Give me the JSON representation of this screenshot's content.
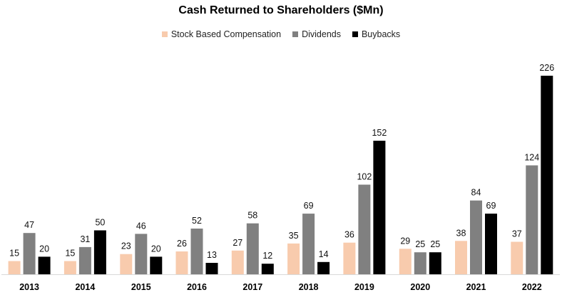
{
  "title": "Cash Returned to Shareholders ($Mn)",
  "legend": [
    {
      "name": "Stock Based Compensation",
      "color": "#f8cbad"
    },
    {
      "name": "Dividends",
      "color": "#808080"
    },
    {
      "name": "Buybacks",
      "color": "#000000"
    }
  ],
  "chart_data": {
    "type": "bar",
    "title": "Cash Returned to Shareholders ($Mn)",
    "xlabel": "",
    "ylabel": "",
    "ylim": [
      0,
      240
    ],
    "grid": false,
    "legend_position": "top-center",
    "categories": [
      "2013",
      "2014",
      "2015",
      "2016",
      "2017",
      "2018",
      "2019",
      "2020",
      "2021",
      "2022"
    ],
    "series": [
      {
        "name": "Stock Based Compensation",
        "color": "#f8cbad",
        "values": [
          15,
          15,
          23,
          26,
          27,
          35,
          36,
          29,
          38,
          37
        ]
      },
      {
        "name": "Dividends",
        "color": "#808080",
        "values": [
          47,
          31,
          46,
          52,
          58,
          69,
          102,
          25,
          84,
          124
        ]
      },
      {
        "name": "Buybacks",
        "color": "#000000",
        "values": [
          20,
          50,
          20,
          13,
          12,
          14,
          152,
          25,
          69,
          226
        ]
      }
    ]
  }
}
